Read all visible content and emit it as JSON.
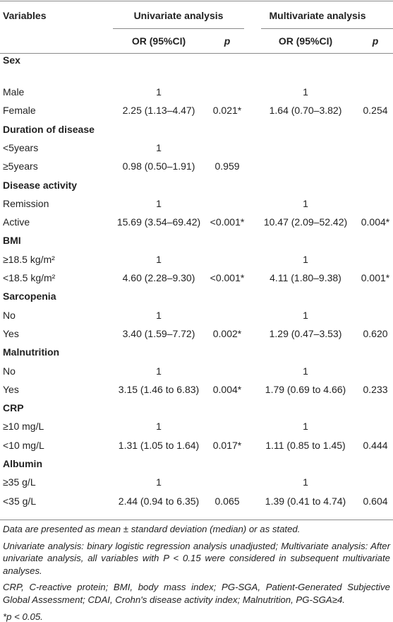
{
  "table": {
    "header": {
      "variables": "Variables",
      "univariate": "Univariate analysis",
      "multivariate": "Multivariate analysis",
      "or_uni": "OR (95%CI)",
      "p_uni": "p",
      "or_multi": "OR (95%CI)",
      "p_multi": "p"
    },
    "rows": [
      {
        "section": "Sex"
      },
      {
        "label": "Male",
        "uni_or": "1",
        "multi_or": "1"
      },
      {
        "label": "Female",
        "uni_or": "2.25 (1.13–4.47)",
        "uni_p": "0.021*",
        "multi_or": "1.64 (0.70–3.82)",
        "multi_p": "0.254"
      },
      {
        "section": "Duration of disease"
      },
      {
        "label": "<5years",
        "uni_or": "1"
      },
      {
        "label": "≥5years",
        "uni_or": "0.98 (0.50–1.91)",
        "uni_p": "0.959"
      },
      {
        "section": "Disease activity"
      },
      {
        "label": "Remission",
        "uni_or": "1",
        "multi_or": "1"
      },
      {
        "label": "Active",
        "uni_or": "15.69 (3.54–69.42)",
        "uni_p": "<0.001*",
        "multi_or": "10.47 (2.09–52.42)",
        "multi_p": "0.004*"
      },
      {
        "section": "BMI"
      },
      {
        "label": "≥18.5 kg/m²",
        "uni_or": "1",
        "multi_or": "1"
      },
      {
        "label": "<18.5 kg/m²",
        "uni_or": "4.60 (2.28–9.30)",
        "uni_p": "<0.001*",
        "multi_or": "4.11 (1.80–9.38)",
        "multi_p": "0.001*"
      },
      {
        "section": "Sarcopenia"
      },
      {
        "label": "No",
        "uni_or": "1",
        "multi_or": "1"
      },
      {
        "label": "Yes",
        "uni_or": "3.40 (1.59–7.72)",
        "uni_p": "0.002*",
        "multi_or": "1.29 (0.47–3.53)",
        "multi_p": "0.620"
      },
      {
        "section": "Malnutrition"
      },
      {
        "label": "No",
        "uni_or": "1",
        "multi_or": "1"
      },
      {
        "label": "Yes",
        "uni_or": "3.15 (1.46 to 6.83)",
        "uni_p": "0.004*",
        "multi_or": "1.79 (0.69 to 4.66)",
        "multi_p": "0.233"
      },
      {
        "section": "CRP"
      },
      {
        "label": "≥10 mg/L",
        "uni_or": "1",
        "multi_or": "1"
      },
      {
        "label": "<10 mg/L",
        "uni_or": "1.31 (1.05 to 1.64)",
        "uni_p": "0.017*",
        "multi_or": "1.11 (0.85 to 1.45)",
        "multi_p": "0.444"
      },
      {
        "section": "Albumin"
      },
      {
        "label": "≥35 g/L",
        "uni_or": "1",
        "multi_or": "1"
      },
      {
        "label": "<35 g/L",
        "uni_or": "2.44 (0.94 to 6.35)",
        "uni_p": "0.065",
        "multi_or": "1.39 (0.41 to 4.74)",
        "multi_p": "0.604"
      }
    ]
  },
  "footnotes": [
    "Data are presented as mean ± standard deviation (median) or as stated.",
    "Univariate analysis: binary logistic regression analysis unadjusted; Multivariate analysis: After univariate analysis, all variables with P < 0.15 were considered in subsequent multivariate analyses.",
    "CRP, C-reactive protein; BMI, body mass index; PG-SGA, Patient-Generated Subjective Global Assessment; CDAI, Crohn's disease activity index; Malnutrition, PG-SGA≥4.",
    "*p < 0.05."
  ]
}
